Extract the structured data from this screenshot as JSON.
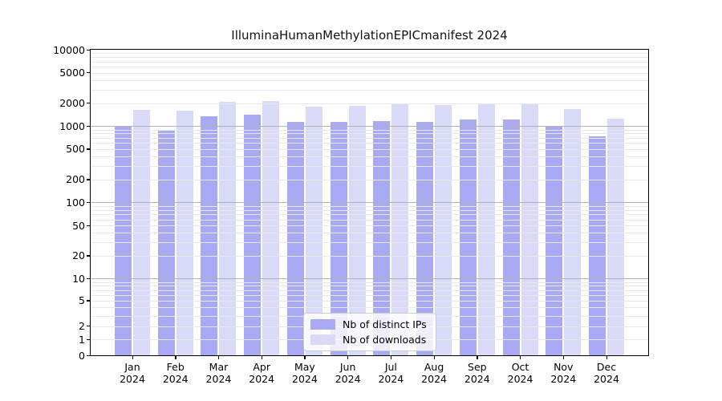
{
  "chart_data": {
    "type": "bar",
    "title": "IlluminaHumanMethylationEPICmanifest 2024",
    "x_months": [
      "Jan",
      "Feb",
      "Mar",
      "Apr",
      "May",
      "Jun",
      "Jul",
      "Aug",
      "Sep",
      "Oct",
      "Nov",
      "Dec"
    ],
    "x_year": "2024",
    "series": [
      {
        "name": "Nb of distinct IPs",
        "color": "#a9a9f4",
        "values": [
          990,
          880,
          1350,
          1400,
          1130,
          1130,
          1160,
          1130,
          1220,
          1220,
          1010,
          740
        ]
      },
      {
        "name": "Nb of downloads",
        "color": "#d9d9f8",
        "values": [
          1650,
          1600,
          2070,
          2120,
          1800,
          1820,
          1930,
          1890,
          1950,
          1950,
          1670,
          1250
        ]
      }
    ],
    "y_ticks": [
      0,
      1,
      2,
      5,
      10,
      20,
      50,
      100,
      200,
      500,
      1000,
      2000,
      5000,
      10000
    ],
    "y_scale": "asinh",
    "ylim": [
      0,
      10000
    ],
    "grid": "on",
    "gridline_major_values": [
      10,
      100,
      1000
    ],
    "legend_position": "lower-center",
    "colors": {
      "major_grid": "#b2b2b2",
      "minor_grid": "#e8e8e8",
      "spine": "#000000",
      "background": "#ffffff"
    }
  }
}
